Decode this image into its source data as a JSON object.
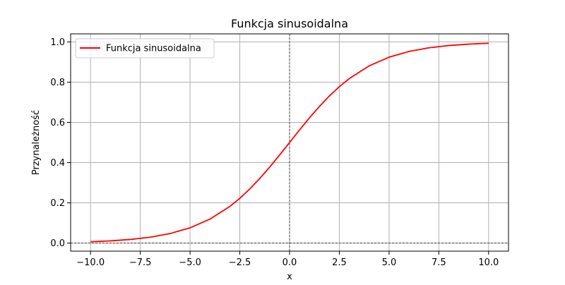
{
  "chart_data": {
    "type": "line",
    "title": "Funkcja sinusoidalna",
    "xlabel": "x",
    "ylabel": "Przynależność",
    "xlim": [
      -11.0,
      11.0
    ],
    "ylim": [
      -0.04,
      1.04
    ],
    "xticks": [
      -10.0,
      -7.5,
      -5.0,
      -2.5,
      0.0,
      2.5,
      5.0,
      7.5,
      10.0
    ],
    "xtick_labels": [
      "−10.0",
      "−7.5",
      "−5.0",
      "−2.5",
      "0.0",
      "2.5",
      "5.0",
      "7.5",
      "10.0"
    ],
    "yticks": [
      0.0,
      0.2,
      0.4,
      0.6,
      0.8,
      1.0
    ],
    "ytick_labels": [
      "0.0",
      "0.2",
      "0.4",
      "0.6",
      "0.8",
      "1.0"
    ],
    "grid": true,
    "legend_position": "upper-left",
    "reference_lines": [
      {
        "axis": "x",
        "value": 0.0,
        "style": "dashed",
        "color": "#000000"
      },
      {
        "axis": "y",
        "value": 0.0,
        "style": "dashed",
        "color": "#000000"
      }
    ],
    "series": [
      {
        "name": "Funkcja sinusoidalna",
        "color": "#ff0000",
        "x": [
          -10.0,
          -9.0,
          -8.0,
          -7.0,
          -6.0,
          -5.0,
          -4.0,
          -3.0,
          -2.5,
          -2.0,
          -1.5,
          -1.0,
          -0.5,
          0.0,
          0.5,
          1.0,
          1.5,
          2.0,
          2.5,
          3.0,
          4.0,
          5.0,
          6.0,
          7.0,
          8.0,
          9.0,
          10.0
        ],
        "y": [
          0.0067,
          0.011,
          0.018,
          0.0293,
          0.0474,
          0.0759,
          0.1192,
          0.1824,
          0.2227,
          0.2689,
          0.3208,
          0.3775,
          0.4378,
          0.5,
          0.5622,
          0.6225,
          0.6792,
          0.7311,
          0.7773,
          0.8176,
          0.8808,
          0.9241,
          0.9526,
          0.9707,
          0.982,
          0.989,
          0.9933
        ]
      }
    ]
  }
}
